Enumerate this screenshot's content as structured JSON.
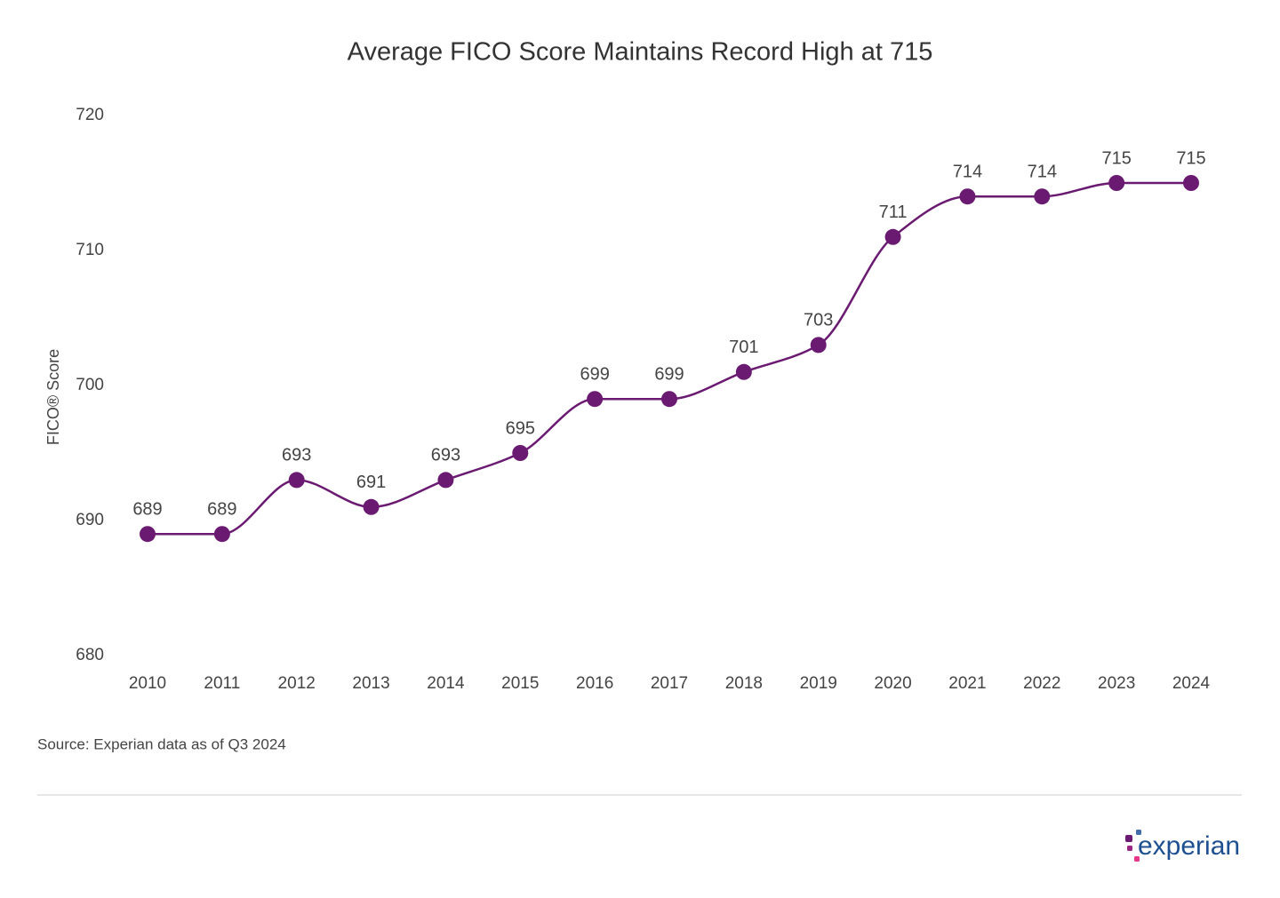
{
  "chart_data": {
    "type": "line",
    "title": "Average FICO Score Maintains Record High at 715",
    "y_label": "FICO® Score",
    "categories": [
      "2010",
      "2011",
      "2012",
      "2013",
      "2014",
      "2015",
      "2016",
      "2017",
      "2018",
      "2019",
      "2020",
      "2021",
      "2022",
      "2023",
      "2024"
    ],
    "values": [
      689,
      689,
      693,
      691,
      693,
      695,
      699,
      699,
      701,
      703,
      711,
      714,
      714,
      715,
      715
    ],
    "color": "#6b1a72",
    "ylim": [
      680,
      720
    ],
    "yticks": [
      680,
      690,
      700,
      710,
      720
    ],
    "grid": false,
    "source": "Source: Experian data as of Q3 2024",
    "logo": "experian"
  }
}
